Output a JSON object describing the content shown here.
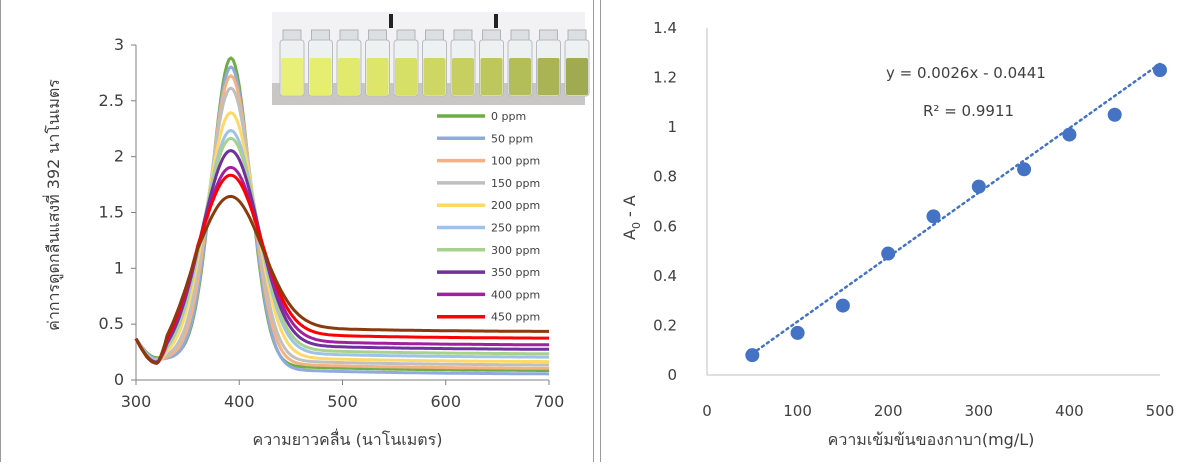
{
  "chart_data": [
    {
      "type": "line",
      "xlabel": "ความยาวคลื่น (นาโนเมตร)",
      "ylabel": "ค่าการดูดกลืนแสงที่ 392 นาโนเมตร",
      "xlim": [
        300,
        700
      ],
      "ylim": [
        0,
        3
      ],
      "x_ticks": [
        "300",
        "400",
        "500",
        "600",
        "700"
      ],
      "y_ticks": [
        "0",
        "0.5",
        "1",
        "1.5",
        "2",
        "2.5",
        "3"
      ],
      "grid": false,
      "legend_position": "right",
      "series": [
        {
          "name": "0 ppm",
          "color": "#70ad47",
          "peak": 2.82,
          "tail": 0.08,
          "dip": 0.2
        },
        {
          "name": "50 ppm",
          "color": "#8faadc",
          "peak": 2.74,
          "tail": 0.05,
          "dip": 0.19
        },
        {
          "name": "100 ppm",
          "color": "#f4b183",
          "peak": 2.66,
          "tail": 0.1,
          "dip": 0.18
        },
        {
          "name": "150 ppm",
          "color": "#bfbfbf",
          "peak": 2.55,
          "tail": 0.13,
          "dip": 0.18
        },
        {
          "name": "200 ppm",
          "color": "#ffd966",
          "peak": 2.33,
          "tail": 0.16,
          "dip": 0.17
        },
        {
          "name": "250 ppm",
          "color": "#9dc3e6",
          "peak": 2.17,
          "tail": 0.2,
          "dip": 0.17
        },
        {
          "name": "300 ppm",
          "color": "#a9d18e",
          "peak": 2.1,
          "tail": 0.23,
          "dip": 0.16
        },
        {
          "name": "350 ppm",
          "color": "#7030a0",
          "peak": 1.99,
          "tail": 0.27,
          "dip": 0.16
        },
        {
          "name": "400 ppm",
          "color": "#a020a0",
          "peak": 1.84,
          "tail": 0.31,
          "dip": 0.15
        },
        {
          "name": "450 ppm",
          "color": "#ff0000",
          "peak": 1.77,
          "tail": 0.37,
          "dip": 0.15
        },
        {
          "name": "",
          "color": "#8b3a0f",
          "peak": 1.58,
          "tail": 0.43,
          "dip": 0.15
        }
      ],
      "inset": "photo of sample vials, yellow to olive-green"
    },
    {
      "type": "scatter",
      "xlabel": "ความเข้มข้นของกาบา(mg/L)",
      "ylabel_main": "A",
      "ylabel_sub": "0",
      "ylabel_tail": " - A",
      "xlim": [
        0,
        500
      ],
      "ylim": [
        0,
        1.4
      ],
      "x_ticks": [
        "0",
        "100",
        "200",
        "300",
        "400",
        "500"
      ],
      "y_ticks": [
        "0",
        "0.2",
        "0.4",
        "0.6",
        "0.8",
        "1",
        "1.2",
        "1.4"
      ],
      "grid": false,
      "marker_color": "#4472c4",
      "trendline": {
        "slope": 0.0026,
        "intercept": -0.0441,
        "color": "#4472c4",
        "style": "dotted"
      },
      "equation": "y = 0.0026x - 0.0441",
      "r_squared": "R² = 0.9911",
      "x": [
        50,
        100,
        150,
        200,
        250,
        300,
        350,
        400,
        450,
        500
      ],
      "y": [
        0.08,
        0.17,
        0.28,
        0.49,
        0.64,
        0.76,
        0.83,
        0.97,
        1.05,
        1.23
      ]
    }
  ]
}
